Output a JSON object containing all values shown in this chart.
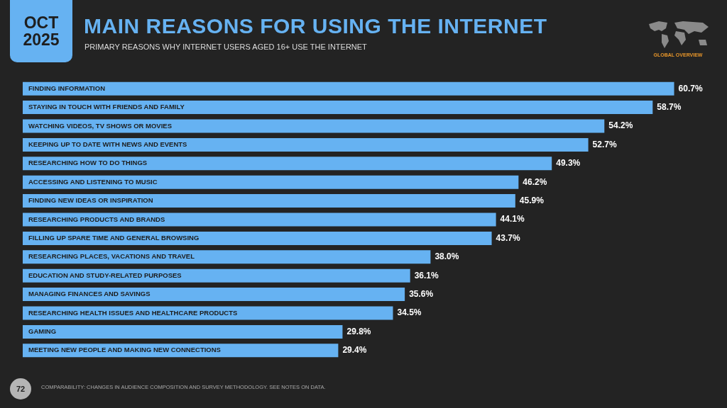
{
  "chart_data": {
    "type": "bar",
    "orientation": "horizontal",
    "title": "MAIN REASONS FOR USING THE INTERNET",
    "subtitle": "PRIMARY REASONS WHY INTERNET USERS AGED 16+ USE THE INTERNET",
    "categories": [
      "FINDING INFORMATION",
      "STAYING IN TOUCH WITH FRIENDS AND FAMILY",
      "WATCHING VIDEOS, TV SHOWS OR MOVIES",
      "KEEPING UP TO DATE WITH NEWS AND EVENTS",
      "RESEARCHING HOW TO DO THINGS",
      "ACCESSING AND LISTENING TO MUSIC",
      "FINDING NEW IDEAS OR INSPIRATION",
      "RESEARCHING PRODUCTS AND BRANDS",
      "FILLING UP SPARE TIME AND GENERAL BROWSING",
      "RESEARCHING PLACES, VACATIONS AND TRAVEL",
      "EDUCATION AND STUDY-RELATED PURPOSES",
      "MANAGING FINANCES AND SAVINGS",
      "RESEARCHING HEALTH ISSUES AND HEALTHCARE PRODUCTS",
      "GAMING",
      "MEETING NEW PEOPLE AND MAKING NEW CONNECTIONS"
    ],
    "values": [
      60.7,
      58.7,
      54.2,
      52.7,
      49.3,
      46.2,
      45.9,
      44.1,
      43.7,
      38.0,
      36.1,
      35.6,
      34.5,
      29.8,
      29.4
    ],
    "value_labels": [
      "60.7%",
      "58.7%",
      "54.2%",
      "52.7%",
      "49.3%",
      "46.2%",
      "45.9%",
      "44.1%",
      "43.7%",
      "38.0%",
      "36.1%",
      "35.6%",
      "34.5%",
      "29.8%",
      "29.4%"
    ],
    "color": "#66b2f2",
    "grid": false,
    "legend": false,
    "tick_labels": "y",
    "annotations": [
      "OCT 2025",
      "GLOBAL OVERVIEW",
      "72",
      "COMPARABILITY: CHANGES IN AUDIENCE COMPOSITION AND SURVEY METHODOLOGY. SEE NOTES ON DATA."
    ]
  }
}
